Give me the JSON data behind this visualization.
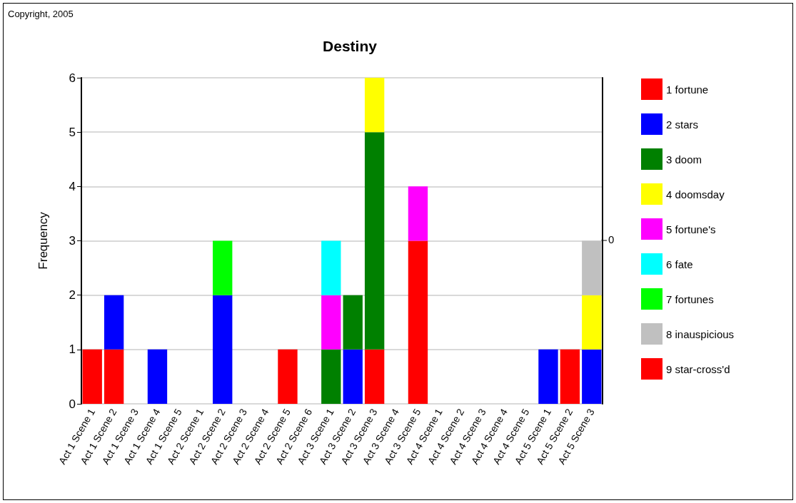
{
  "chart_data": {
    "type": "bar",
    "title": "Destiny",
    "ylabel": "Frequency",
    "annotations": [
      "Copyright, 2005",
      "0"
    ],
    "categories": [
      "Act 1 Scene 1",
      "Act 1 Scene 2",
      "Act 1 Scene 3",
      "Act 1 Scene 4",
      "Act 1 Scene 5",
      "Act 2 Scene 1",
      "Act 2 Scene 2",
      "Act 2 Scene 3",
      "Act 2 Scene 4",
      "Act 2 Scene 5",
      "Act 2 Scene 6",
      "Act 3 Scene 1",
      "Act 3 Scene 2",
      "Act 3 Scene 3",
      "Act 3 Scene 4",
      "Act 3 Scene 5",
      "Act 4 Scene 1",
      "Act 4 Scene 2",
      "Act 4 Scene 3",
      "Act 4 Scene 4",
      "Act 4 Scene 5",
      "Act 5 Scene 1",
      "Act 5 Scene 2",
      "Act 5 Scene 3"
    ],
    "stacked": true,
    "ylim": [
      0,
      6
    ],
    "yticks": [
      0,
      1,
      2,
      3,
      4,
      5,
      6
    ],
    "grid": "y",
    "legend": "right",
    "series": [
      {
        "name": "1 fortune",
        "color": "#ff0000",
        "values": [
          1,
          1,
          null,
          null,
          null,
          null,
          null,
          null,
          null,
          1,
          null,
          null,
          null,
          1,
          null,
          3,
          null,
          null,
          null,
          null,
          null,
          null,
          1,
          null
        ]
      },
      {
        "name": "2 stars",
        "color": "#0000ff",
        "values": [
          null,
          1,
          null,
          1,
          null,
          null,
          2,
          null,
          null,
          null,
          null,
          null,
          1,
          null,
          null,
          null,
          null,
          null,
          null,
          null,
          null,
          1,
          null,
          1
        ]
      },
      {
        "name": "3 doom",
        "color": "#008000",
        "values": [
          null,
          null,
          null,
          null,
          null,
          null,
          null,
          null,
          null,
          null,
          null,
          1,
          1,
          4,
          null,
          null,
          null,
          null,
          null,
          null,
          null,
          null,
          null,
          null
        ]
      },
      {
        "name": "4 doomsday",
        "color": "#ffff00",
        "values": [
          null,
          null,
          null,
          null,
          null,
          null,
          null,
          null,
          null,
          null,
          null,
          null,
          null,
          1,
          null,
          null,
          null,
          null,
          null,
          null,
          null,
          null,
          null,
          1
        ]
      },
      {
        "name": "5 fortune's",
        "color": "#ff00ff",
        "values": [
          null,
          null,
          null,
          null,
          null,
          null,
          null,
          null,
          null,
          null,
          null,
          1,
          null,
          null,
          null,
          1,
          null,
          null,
          null,
          null,
          null,
          null,
          null,
          null
        ]
      },
      {
        "name": "6 fate",
        "color": "#00ffff",
        "values": [
          null,
          null,
          null,
          null,
          null,
          null,
          null,
          null,
          null,
          null,
          null,
          1,
          null,
          null,
          null,
          null,
          null,
          null,
          null,
          null,
          null,
          null,
          null,
          null
        ]
      },
      {
        "name": "7 fortunes",
        "color": "#00ff00",
        "values": [
          null,
          null,
          null,
          null,
          null,
          null,
          1,
          null,
          null,
          null,
          null,
          null,
          null,
          null,
          null,
          null,
          null,
          null,
          null,
          null,
          null,
          null,
          null,
          null
        ]
      },
      {
        "name": "8 inauspicious",
        "color": "#c0c0c0",
        "values": [
          null,
          null,
          null,
          null,
          null,
          null,
          null,
          null,
          null,
          null,
          null,
          null,
          null,
          null,
          null,
          null,
          null,
          null,
          null,
          null,
          null,
          null,
          null,
          1
        ]
      },
      {
        "name": "9 star-cross'd",
        "color": "#ff0000",
        "values": [
          null,
          null,
          null,
          null,
          null,
          null,
          null,
          null,
          null,
          null,
          null,
          null,
          null,
          null,
          null,
          null,
          null,
          null,
          null,
          null,
          null,
          null,
          null,
          null
        ]
      }
    ]
  }
}
